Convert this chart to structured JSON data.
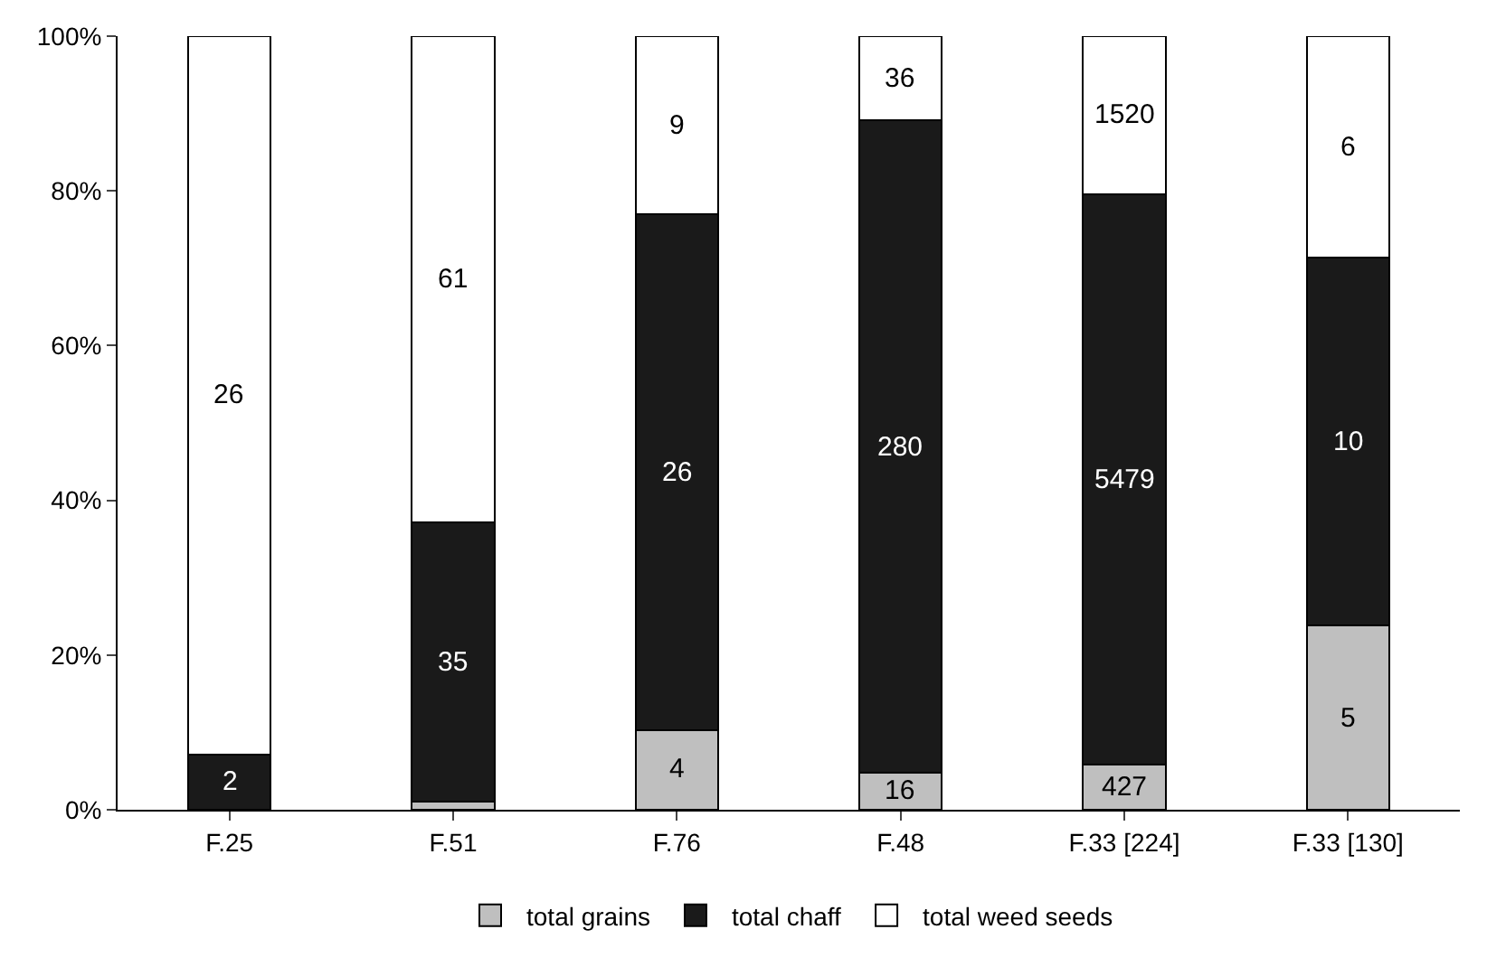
{
  "chart_data": {
    "type": "bar",
    "stacked": true,
    "categories": [
      "F.25",
      "F.51",
      "F.76",
      "F.48",
      "F.33 [224]",
      "F.33 [130]"
    ],
    "series": [
      {
        "name": "total grains",
        "color": "#bfbfbf",
        "values": [
          0,
          1.0,
          10.3,
          4.8,
          5.8,
          23.8
        ]
      },
      {
        "name": "total chaff",
        "color": "#1a1a1a",
        "values": [
          7.1,
          36.1,
          66.7,
          84.3,
          73.8,
          47.6
        ]
      },
      {
        "name": "total weed seeds",
        "color": "#ffffff",
        "values": [
          92.9,
          62.9,
          23.0,
          10.9,
          20.4,
          28.6
        ]
      }
    ],
    "annotations": [
      "2",
      "26",
      "35",
      "61",
      "4",
      "26",
      "9",
      "16",
      "280",
      "36",
      "427",
      "5479",
      "1520",
      "5",
      "10",
      "6"
    ],
    "ylim": [
      0,
      100
    ],
    "yticks": [
      {
        "value": 0,
        "label": "0%"
      },
      {
        "value": 20,
        "label": "20%"
      },
      {
        "value": 40,
        "label": "40%"
      },
      {
        "value": 60,
        "label": "60%"
      },
      {
        "value": 80,
        "label": "80%"
      },
      {
        "value": 100,
        "label": "100%"
      }
    ],
    "grid": false,
    "legend": "bottom"
  }
}
